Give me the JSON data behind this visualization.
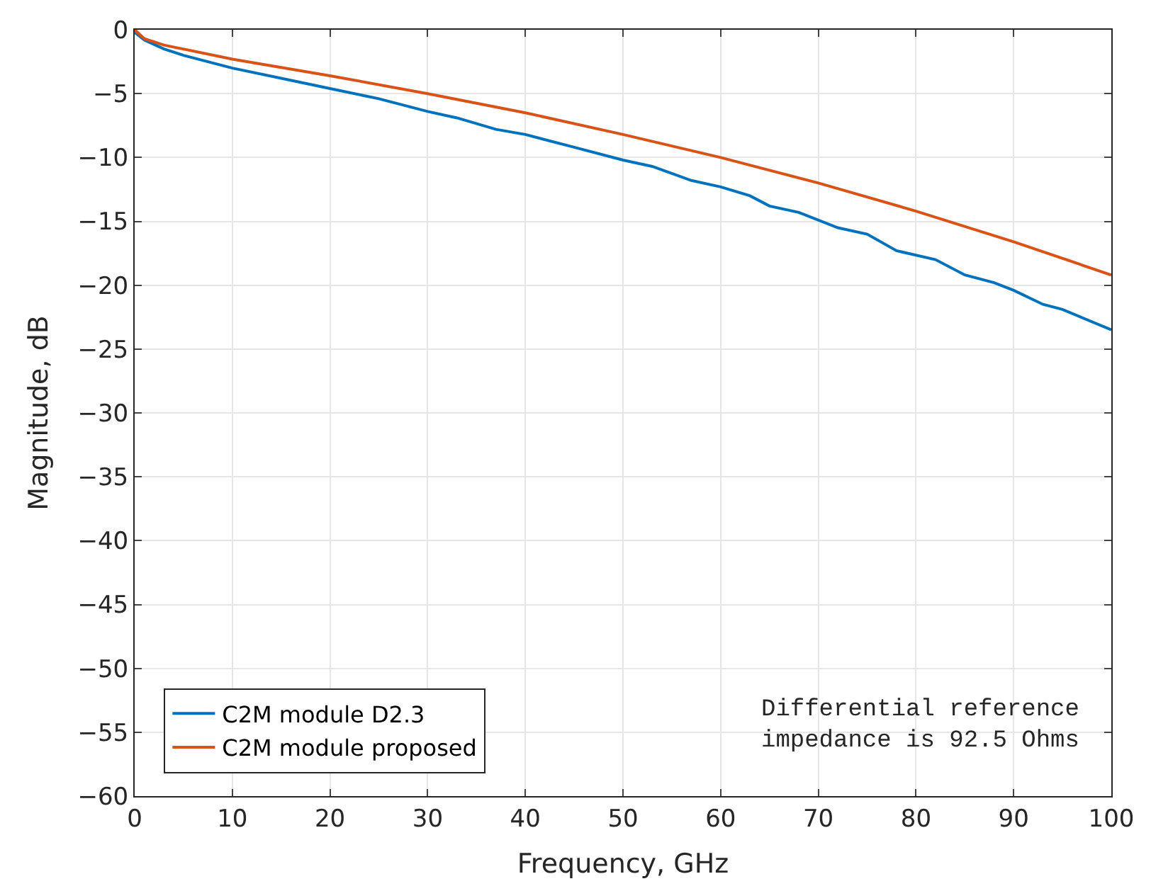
{
  "chart_data": {
    "type": "line",
    "xlabel": "Frequency, GHz",
    "ylabel": "Magnitude, dB",
    "xlim": [
      0,
      100
    ],
    "xticks": [
      0,
      10,
      20,
      30,
      40,
      50,
      60,
      70,
      80,
      90,
      100
    ],
    "ylim": [
      -60,
      0
    ],
    "yticks": [
      -60,
      -55,
      -50,
      -45,
      -40,
      -35,
      -30,
      -25,
      -20,
      -15,
      -10,
      -5,
      0
    ],
    "grid": true,
    "legend": "bottom left",
    "annotations": [
      "Differential reference\nimpedance is 92.5 Ohms"
    ],
    "series": [
      {
        "name": "C2M module D2.3",
        "color": "#0072bd",
        "x": [
          0,
          1,
          3,
          5,
          10,
          15,
          20,
          25,
          30,
          33,
          37,
          40,
          45,
          50,
          53,
          57,
          60,
          63,
          65,
          68,
          72,
          75,
          78,
          82,
          85,
          88,
          90,
          93,
          95,
          100
        ],
        "values": [
          -0.2,
          -0.8,
          -1.5,
          -2.0,
          -3.0,
          -3.8,
          -4.6,
          -5.4,
          -6.4,
          -6.9,
          -7.8,
          -8.2,
          -9.2,
          -10.2,
          -10.7,
          -11.8,
          -12.3,
          -13.0,
          -13.8,
          -14.3,
          -15.5,
          -16.0,
          -17.3,
          -18.0,
          -19.2,
          -19.8,
          -20.4,
          -21.5,
          -21.9,
          -23.5
        ]
      },
      {
        "name": "C2M module proposed",
        "color": "#d95319",
        "x": [
          0,
          1,
          3,
          10,
          20,
          30,
          40,
          50,
          60,
          70,
          80,
          90,
          100
        ],
        "values": [
          0,
          -0.7,
          -1.2,
          -2.3,
          -3.6,
          -5.0,
          -6.5,
          -8.2,
          -10.0,
          -12.0,
          -14.2,
          -16.6,
          -19.2
        ]
      }
    ]
  }
}
